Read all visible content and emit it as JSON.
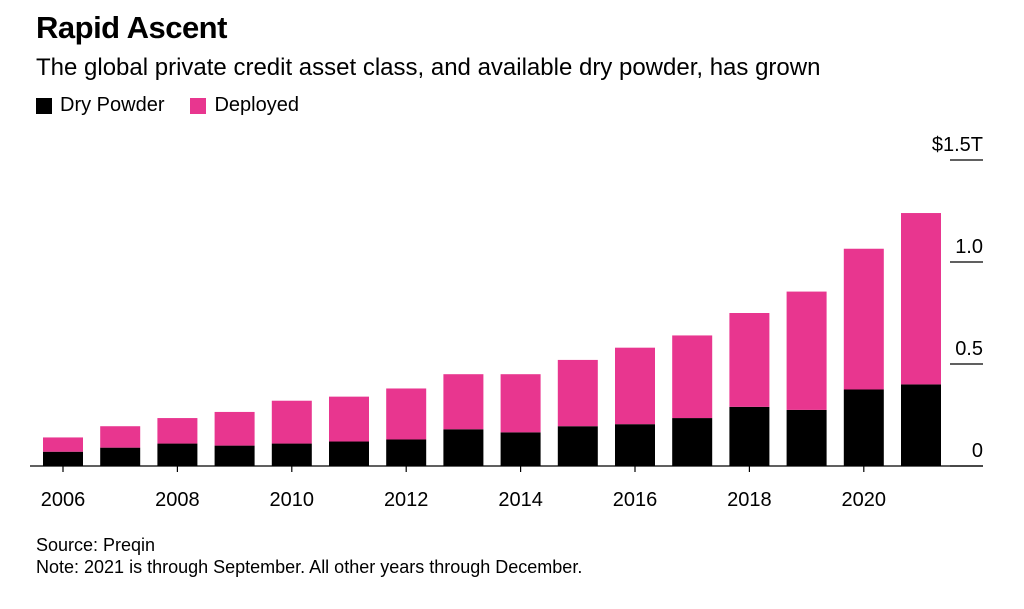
{
  "header": {
    "title": "Rapid Ascent",
    "subtitle": "The global private credit asset class, and available dry powder, has grown"
  },
  "legend": [
    {
      "label": "Dry Powder",
      "color": "#000000"
    },
    {
      "label": "Deployed",
      "color": "#e8368f"
    }
  ],
  "colors": {
    "dry_powder": "#000000",
    "deployed": "#e8368f",
    "axis": "#000000"
  },
  "chart_data": {
    "type": "bar",
    "stacked": true,
    "categories": [
      "2006",
      "2007",
      "2008",
      "2009",
      "2010",
      "2011",
      "2012",
      "2013",
      "2014",
      "2015",
      "2016",
      "2017",
      "2018",
      "2019",
      "2020",
      "2021"
    ],
    "x_tick_labels": [
      "2006",
      "",
      "2008",
      "",
      "2010",
      "",
      "2012",
      "",
      "2014",
      "",
      "2016",
      "",
      "2018",
      "",
      "2020",
      ""
    ],
    "series": [
      {
        "name": "Dry Powder",
        "values": [
          0.07,
          0.09,
          0.11,
          0.1,
          0.11,
          0.12,
          0.13,
          0.18,
          0.165,
          0.195,
          0.205,
          0.235,
          0.29,
          0.275,
          0.375,
          0.4
        ]
      },
      {
        "name": "Deployed",
        "values": [
          0.07,
          0.105,
          0.125,
          0.165,
          0.21,
          0.22,
          0.25,
          0.27,
          0.285,
          0.325,
          0.375,
          0.405,
          0.46,
          0.58,
          0.69,
          0.84
        ]
      }
    ],
    "y_ticks": [
      {
        "value": 1.5,
        "label": "$1.5T"
      },
      {
        "value": 1.0,
        "label": "1.0"
      },
      {
        "value": 0.5,
        "label": "0.5"
      },
      {
        "value": 0,
        "label": "0"
      }
    ],
    "ylim": [
      0,
      1.5
    ],
    "unit": "trillion USD",
    "title": "Rapid Ascent",
    "xlabel": "",
    "ylabel": ""
  },
  "footer": {
    "source": "Source: Preqin",
    "note": "Note: 2021 is through September. All other years through December."
  }
}
